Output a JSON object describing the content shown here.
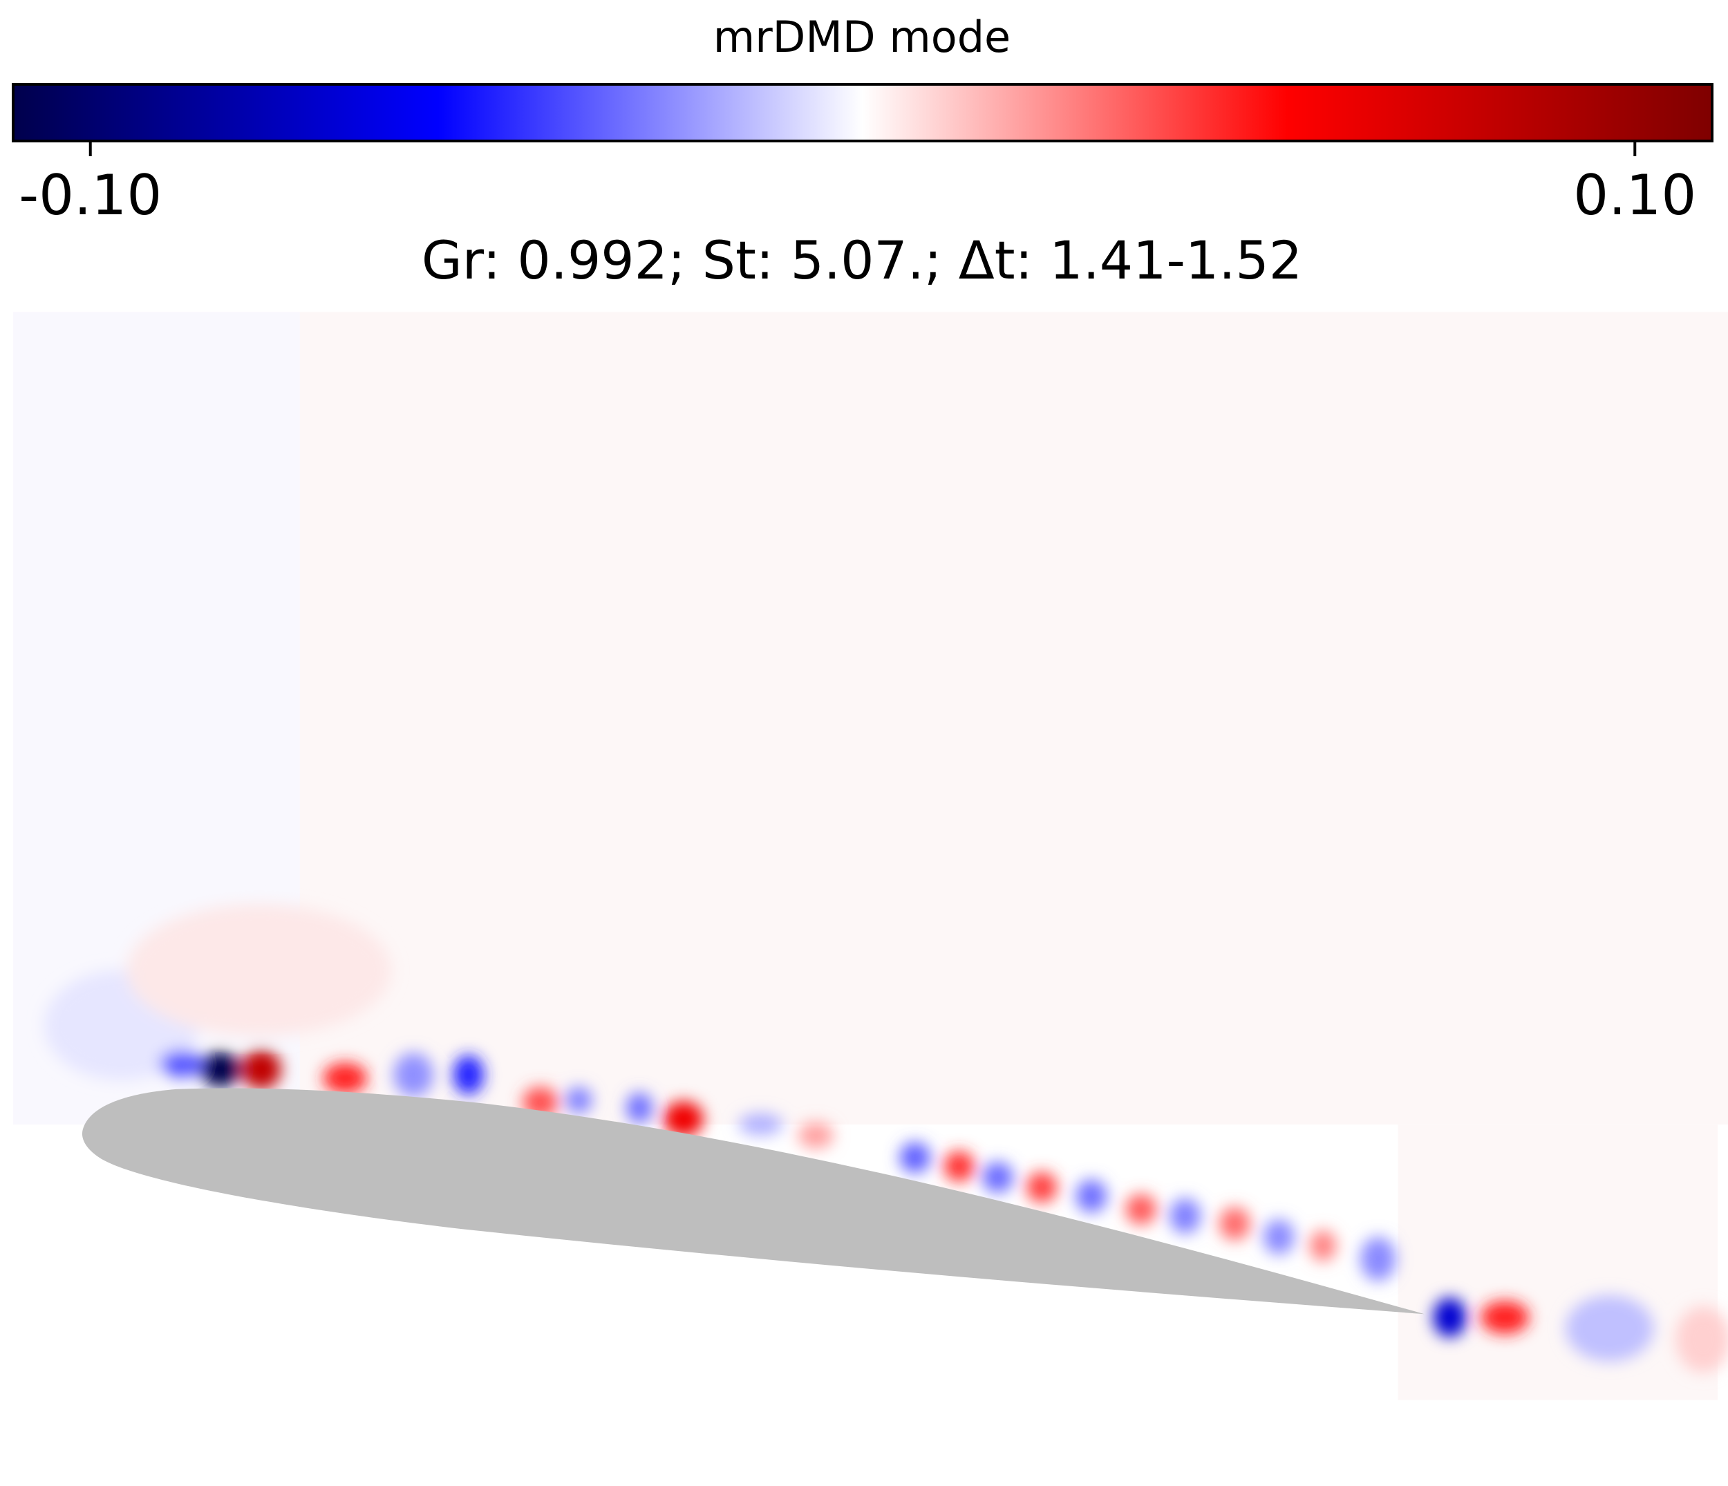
{
  "chart_data": {
    "type": "heatmap",
    "colorbar_label": "mrDMD mode",
    "title": "Gr: 0.992; St: 5.07.; Δt: 1.41-1.52",
    "clim": [
      -0.11,
      0.11
    ],
    "cticks": [
      {
        "value": -0.1,
        "label": "-0.10"
      },
      {
        "value": 0.1,
        "label": "0.10"
      }
    ],
    "colormap": [
      "#00004c",
      "#0000ff",
      "#ffffff",
      "#ff0000",
      "#7f0000"
    ]
  }
}
